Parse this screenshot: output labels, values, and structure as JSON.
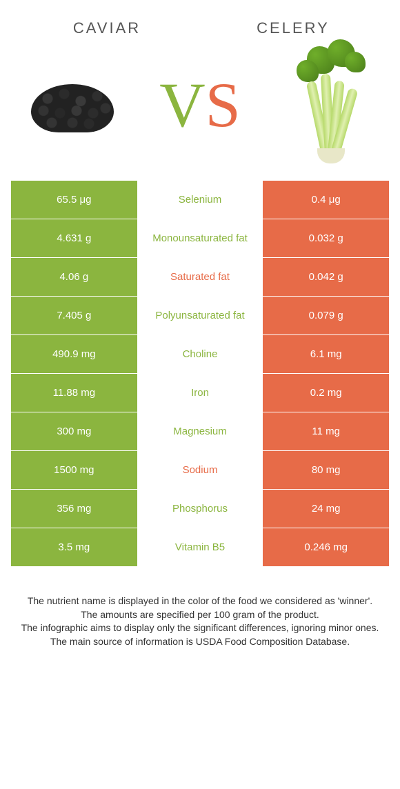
{
  "colors": {
    "left_bg": "#8bb53f",
    "right_bg": "#e76b48",
    "nutrient_winner_left": "#8bb53f",
    "nutrient_winner_right": "#e76b48"
  },
  "header": {
    "left_title": "CAVIAR",
    "right_title": "CELERY",
    "vs_v": "V",
    "vs_s": "S"
  },
  "rows": [
    {
      "left": "65.5 μg",
      "nutrient": "Selenium",
      "right": "0.4 μg",
      "winner": "left"
    },
    {
      "left": "4.631 g",
      "nutrient": "Monounsaturated fat",
      "right": "0.032 g",
      "winner": "left"
    },
    {
      "left": "4.06 g",
      "nutrient": "Saturated fat",
      "right": "0.042 g",
      "winner": "right"
    },
    {
      "left": "7.405 g",
      "nutrient": "Polyunsaturated fat",
      "right": "0.079 g",
      "winner": "left"
    },
    {
      "left": "490.9 mg",
      "nutrient": "Choline",
      "right": "6.1 mg",
      "winner": "left"
    },
    {
      "left": "11.88 mg",
      "nutrient": "Iron",
      "right": "0.2 mg",
      "winner": "left"
    },
    {
      "left": "300 mg",
      "nutrient": "Magnesium",
      "right": "11 mg",
      "winner": "left"
    },
    {
      "left": "1500 mg",
      "nutrient": "Sodium",
      "right": "80 mg",
      "winner": "right"
    },
    {
      "left": "356 mg",
      "nutrient": "Phosphorus",
      "right": "24 mg",
      "winner": "left"
    },
    {
      "left": "3.5 mg",
      "nutrient": "Vitamin B5",
      "right": "0.246 mg",
      "winner": "left"
    }
  ],
  "footer": {
    "line1": "The nutrient name is displayed in the color of the food we considered as 'winner'.",
    "line2": "The amounts are specified per 100 gram of the product.",
    "line3": "The infographic aims to display only the significant differences, ignoring minor ones.",
    "line4": "The main source of information is USDA Food Composition Database."
  }
}
